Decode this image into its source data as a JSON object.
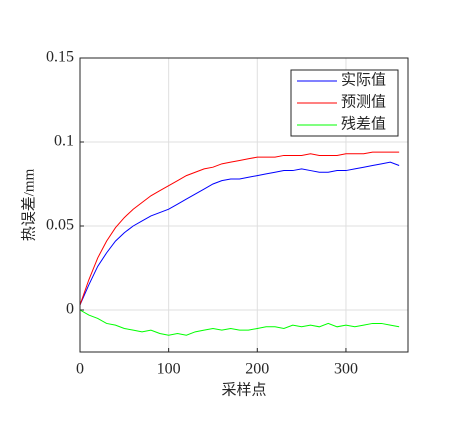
{
  "chart_data": {
    "type": "line",
    "xlabel": "采样点",
    "ylabel": "热误差/mm",
    "x": [
      0,
      10,
      20,
      30,
      40,
      50,
      60,
      70,
      80,
      90,
      100,
      110,
      120,
      130,
      140,
      150,
      160,
      170,
      180,
      190,
      200,
      210,
      220,
      230,
      240,
      250,
      260,
      270,
      280,
      290,
      300,
      310,
      320,
      330,
      340,
      350,
      360
    ],
    "series": [
      {
        "name": "实际值",
        "color": "#0000ff",
        "values": [
          0.003,
          0.015,
          0.026,
          0.034,
          0.041,
          0.046,
          0.05,
          0.053,
          0.056,
          0.058,
          0.06,
          0.063,
          0.066,
          0.069,
          0.072,
          0.075,
          0.077,
          0.078,
          0.078,
          0.079,
          0.08,
          0.081,
          0.082,
          0.083,
          0.083,
          0.084,
          0.083,
          0.082,
          0.082,
          0.083,
          0.083,
          0.084,
          0.085,
          0.086,
          0.087,
          0.088,
          0.086
        ]
      },
      {
        "name": "预测值",
        "color": "#ff0000",
        "values": [
          0.003,
          0.018,
          0.031,
          0.041,
          0.049,
          0.055,
          0.06,
          0.064,
          0.068,
          0.071,
          0.074,
          0.077,
          0.08,
          0.082,
          0.084,
          0.085,
          0.087,
          0.088,
          0.089,
          0.09,
          0.091,
          0.091,
          0.091,
          0.092,
          0.092,
          0.092,
          0.093,
          0.092,
          0.092,
          0.092,
          0.093,
          0.093,
          0.093,
          0.094,
          0.094,
          0.094,
          0.094
        ]
      },
      {
        "name": "残差值",
        "color": "#00ff00",
        "values": [
          0,
          -0.003,
          -0.005,
          -0.008,
          -0.009,
          -0.011,
          -0.012,
          -0.013,
          -0.012,
          -0.014,
          -0.015,
          -0.014,
          -0.015,
          -0.013,
          -0.012,
          -0.011,
          -0.012,
          -0.011,
          -0.012,
          -0.012,
          -0.011,
          -0.01,
          -0.01,
          -0.011,
          -0.009,
          -0.01,
          -0.009,
          -0.01,
          -0.008,
          -0.01,
          -0.009,
          -0.01,
          -0.009,
          -0.008,
          -0.008,
          -0.009,
          -0.01
        ]
      }
    ],
    "xlim": [
      0,
      370
    ],
    "xticks": [
      0,
      100,
      200,
      300
    ],
    "ylim": [
      -0.025,
      0.15
    ],
    "yticks": [
      0,
      0.05,
      0.1,
      0.15
    ],
    "grid": true,
    "legend": "northeast"
  }
}
